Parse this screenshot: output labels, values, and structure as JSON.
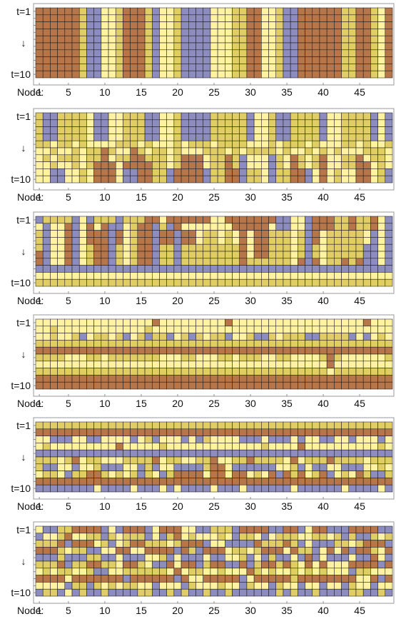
{
  "chart_data": {
    "type": "heatmap",
    "description_free": true,
    "nodes": 49,
    "time_steps": 10,
    "row_labels": {
      "top": "t=1",
      "middle": "↓",
      "bottom": "t=10"
    },
    "x_axis": {
      "prefix": "Node:",
      "ticks": [
        "1",
        "5",
        "10",
        "15",
        "20",
        "25",
        "30",
        "35",
        "40",
        "45"
      ],
      "tick_values": [
        1,
        5,
        10,
        15,
        20,
        25,
        30,
        35,
        40,
        45
      ]
    },
    "colors": {
      "B": "#b7754a",
      "G": "#e0cd63",
      "L": "#fff3a2",
      "P": "#8c8cbf"
    },
    "panels": [
      {
        "rows": [
          "BBBBBBGPPLLGBBBGPLLGPPPPLLLGGBBLLGPPBBBBBBGGBBGLB",
          "BBBBBBGPPLLGBBBGPLLGPPPPLLLGGBBLLGPPBBBBBBGGBBGLB",
          "BBBBBBGPPLLGBBBGPLLGPPPPLLLGGBBLLGPPBBBBBBGGBBGLB",
          "BBBBBBGPPLLGBBBGPLLGPPPPLLLGGBBLLGPPBBBBBBGGBBGLB",
          "BBBBBBGPPLLGBBBGPLLGPPPPLLLGGBBLLGPPBBBBBBGGBBGLB",
          "BBBBBBGPPLLGBBBGPLLGPPPPLLLGGBBLLGPPBBBBBBGGBBGLB",
          "BBBBBBGPPLLGBBBGPLLGPPPPLLLGGBBLLGPPBBBBBBGGBBGLB",
          "BBBBBBGPPLLGBBBGPLLGPPPPLLLGGBBLLGPPBBBBBBGGBBGLB",
          "BBBBBBGPPLLGBBBGPLLGPPPPLLLGGBBLLGPPBBBBBBGGBBGLB",
          "BBBBBBGPPLLGBBBGPLLGPPPPLLLGGBBLLGPPBBBBBBGGBBGLB"
        ]
      },
      {
        "rows": [
          "GPPGGGGLPPLLGGGPPLLGPPPPGGGGGPLLGPPGGGGPLLGGGGPLP",
          "GPPGGGGLPPLLGGGPPLLGPPPPGGGGGPLLGPPGGGGPLLGGGGPLP",
          "GPPGGGGLPPLLGGGPPLLGPPPPGGGGGPLLGPPGGGGPLLGGGGPLP",
          "GPPGGGGLPPLLGGGPPLLGPPPPGGGGGPLLGPPGGGGPLLGGGGPLP",
          "GGLGGLGLLLLGGGLGLLLGLGGGLGGGGLLLGLGGGLGLLLGGLGLLG",
          "LLGLLGLGGBGLLBGLGGLGLLLGGGLGLGGGGLGLLGLGLGLLLGGGL",
          "LGLGGGLGGBLGGBBGGGLGBBBLGGBGPLLLPGLBGLGBLLGGBLGGL",
          "LLGLLGLGBBBLBBBBGGLGBBBLGGBGPLLLPGLBGLGBLLGGBBLGL",
          "LLPPLLGLBBBLPPBBGGPBBBBPGGBBPGGLPGGBBPLBLGLLBBLGP",
          "LLPPLLGLBBBLPPBBGGPBBBBPGGBBPGGLPGGBBPLBLGLLBBLGP"
        ]
      },
      {
        "rows": [
          "PGGGGPLPGGGPGGGBBLBBBBBBLLBBBBBBBPPLLPBBBGGBGGBLP",
          "LPLLBPLBLBPPLGBBPGPBLLLLLLLBBBBBLPPLLPBBBGGBGGBLP",
          "GPLLBPLBBBPBLGBBPBBPBBLGGLGLBLBBGGGLGPBLGGGGGLPLP",
          "GPLLBPLBBBPBLGBBPBBPBBLGGLGLBLBBGGGLGPBLGGGGGLPLP",
          "GPLLBPLGBBPGLGBBPGGPGGGGGGGGBLBBGGGLGPGLGGGGGPPLP",
          "BPLLBPLGBBPGLGBBPGGPGGGGGGGGBLBBGGGLGPGLGGGGGPPLP",
          "BPLLBPLGBBPGLGBBPGGPGGGGGGGGBGGGGGGLBPBLGGBGBPPLP",
          "PPPPPPPPPPPPPPPPPPPPPPPPPPPPPPPPPPPPPPPPPPPPPPPPP",
          "LLLLLLLLLLLLLLLLLLLLLLLLLLLLLLLLLLLLLLLLLLLLLLLLL",
          "GGGGGGGGGGGGGGGGGGGGGGGGGGGGGGGGGGGGGGGGGGGGGGGGG"
        ]
      },
      {
        "rows": [
          "LLLLLLLLLLLLLLLLBLLLLLLLLLBLLLLLLLLLLLLLLLLLLBLLL",
          "LLGLLLLLLLLLLLLGLLLLLLLLLLLLLLLLLLLLLLLLLLLLLLLLL",
          "LLGLLGPLGGLGPLGPGGPLGPGLGGPLLGPPGLGGGPPGGGGPLPLGL",
          "GGGGGGGGGGGGGGGGGGGGGGGGGGGGGGGGGGGGGGGGGGGGGGGGG",
          "BBBBBBBBBBBBBBBBBBBBBBBBBBBBBBBBBBBBBBBBBBBBBBBBB",
          "GGGGLLLGGLGGGGGGGLLLGGLLLGGLGGGLLGGLLLLGBGLLLLLLG",
          "LLLLLLLLLLLLLLLLLLLLLLLLLLLLLLLLLLLLLLLLBLLLLLLLL",
          "GGGGGGGGGGGGGGGGGGGGGGGGGGGGGGGGGGGGGGGGLGGGGGGGG",
          "BBBBBBBBBBBBBBBBBBBBBBBBBBBBBBBBBBBBBBBBBBBBBBBBB",
          "BBBBBBBBBBBBBBBBBBBBBBBBBBBBBBBBBBBBBBBBBBBBBBBBB"
        ]
      },
      {
        "rows": [
          "GGGGGGGGGGGGGGGGGGGGGGGGGGGGGGGGGGGGGGGGGGGGGGGGG",
          "BBBBBBBBBBBBBBBBBBBBBBBBBBBBBBBBBBBBBBBBBBBBBBBBB",
          "LLPPPLLPPLLLLPLGPLLLPLPGLLLLPPPLPPPLPLLPPLLPLLLPL",
          "LGLLLLLLLLLBLLLLLGLLLLLLLLLLLLLGLLLLBLLLLLLLLLLGL",
          "PPPPPPPPPPPPPPPPPPPPPPPPPPPPPPPPPPPPPPPPPPPPPPPPP",
          "GGGLGBLGGLLLGGGGBLGGLLGGBLLGGBGGGGLBLGGGBGGGGLGGG",
          "GPPLLPLLGPPPLLPGPLLPPPPGBBLPPPPPPLLGPLPPLLPPPLLGL",
          "LGGLPGGBBGLGLGPGLPGBBBBLBBLBBLGLBPBGBLGBPLGLBGPPG",
          "BBBBBBBBBBBBBBBBBBBBBBBBBBBBBBBBBBBBBBBBBBBBBBBBB",
          "PPPPPPPPLPPPPLPPPLPLPPPPLPPPLPPPPPPLPPPPPPLPPPPLP"
        ]
      },
      {
        "rows": [
          "LPPGGBBBBPLPBBBPLBBBLLPPGGGPBBBBPPBBPLBBPPPBBBBPP",
          "PLLGBLLGGPGLGGGPLPGBLGLLLGLPGGLPLGGGLLGGLGPGPPGLG",
          "GGGBPBBBLGPLGBBGGGLGBBBPLLPPPPBGGGBGPLPPPGGLGBBBP",
          "BBBGLGGPPLLBBLLBBBBPBGPBBBLGGLGBBBLBGGPLBLBPBBGLB",
          "PPPGPPPGGPPLPPPLLGPLPPPLPPLLGPLPGPPLPBPLPPPLPPBLP",
          "GGGBPGGBBGGLBBGLPPBLBBPGBBPPBPGBBGBGLBLBLLLBBBBPB",
          "LGLGGLLGPPLLGGGGGGLBLGGLLGLLLBGLGLLGLGLGLLLPGGLLL",
          "BBBBLBBBBBBBPBBBBBBPBLLBBBBBPLBBBBBGBBBBBBBBLLBPB",
          "LLLLPGGPGLGLGGLLPLLLPGLLLGLLPGLLPGLLPLLPLLPGLLPLL",
          "PGGPLPGPPGPPPPGGPPGPGPPGPPGPPPPPPGPGPPGPPPPGGPPGP"
        ]
      }
    ]
  }
}
